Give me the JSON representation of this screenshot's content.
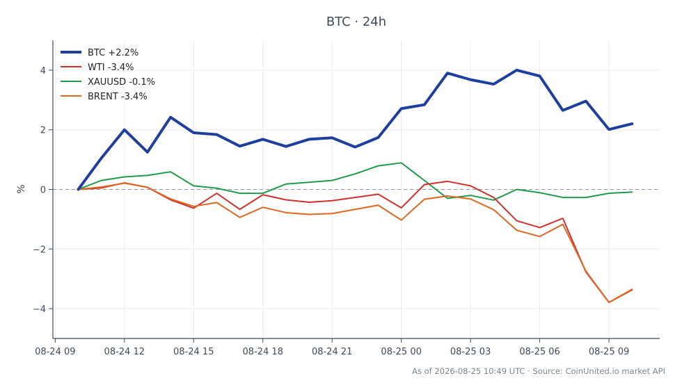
{
  "chart_data": {
    "type": "line",
    "title": "BTC · 24h",
    "ylabel": "%",
    "xlabel": "",
    "footer": "As of 2026-08-25 10:49 UTC · Source: CoinUnited.io market API",
    "x_ticks": [
      "08-24 09",
      "08-24 12",
      "08-24 15",
      "08-24 18",
      "08-24 21",
      "08-25 00",
      "08-25 03",
      "08-25 06",
      "08-25 09"
    ],
    "y_ticks": [
      4,
      2,
      0,
      -2,
      -4
    ],
    "y_tick_labels": [
      "4",
      "2",
      "0",
      "−2",
      "−4"
    ],
    "xlim_hours": [
      8.9,
      35.2
    ],
    "ylim": [
      -5.0,
      5.0
    ],
    "grid": true,
    "zero_line": true,
    "legend_position": "top-left",
    "x_hours": [
      10,
      11,
      12,
      13,
      14,
      15,
      16,
      17,
      18,
      19,
      20,
      21,
      22,
      23,
      24,
      25,
      26,
      27,
      28,
      29,
      30,
      31,
      32,
      33,
      34
    ],
    "series": [
      {
        "name": "BTC +2.2%",
        "color": "#1f3f9c",
        "width": 4,
        "values": [
          0.0,
          1.05,
          2.0,
          1.25,
          2.42,
          1.9,
          1.84,
          1.45,
          1.68,
          1.44,
          1.68,
          1.73,
          1.42,
          1.74,
          2.71,
          2.84,
          3.9,
          3.68,
          3.53,
          4.0,
          3.8,
          2.65,
          2.96,
          2.01,
          2.2
        ]
      },
      {
        "name": "WTI -3.4%",
        "color": "#d0312d",
        "width": 2,
        "values": [
          0.0,
          0.05,
          0.22,
          0.07,
          -0.35,
          -0.63,
          -0.13,
          -0.67,
          -0.18,
          -0.35,
          -0.43,
          -0.38,
          -0.27,
          -0.16,
          -0.62,
          0.16,
          0.27,
          0.12,
          -0.27,
          -1.05,
          -1.28,
          -0.97,
          -2.77,
          -3.79,
          -3.37
        ]
      },
      {
        "name": "XAUUSD -0.1%",
        "color": "#1f9a4a",
        "width": 2,
        "values": [
          0.0,
          0.3,
          0.42,
          0.47,
          0.59,
          0.12,
          0.04,
          -0.13,
          -0.13,
          0.18,
          0.24,
          0.3,
          0.52,
          0.79,
          0.89,
          0.3,
          -0.3,
          -0.2,
          -0.36,
          0.0,
          -0.11,
          -0.27,
          -0.27,
          -0.13,
          -0.09
        ]
      },
      {
        "name": "BRENT -3.4%",
        "color": "#e0661f",
        "width": 2,
        "values": [
          0.0,
          0.08,
          0.21,
          0.07,
          -0.32,
          -0.57,
          -0.44,
          -0.94,
          -0.6,
          -0.78,
          -0.84,
          -0.81,
          -0.67,
          -0.53,
          -1.03,
          -0.33,
          -0.22,
          -0.32,
          -0.68,
          -1.37,
          -1.58,
          -1.17,
          -2.74,
          -3.79,
          -3.35
        ]
      }
    ]
  }
}
